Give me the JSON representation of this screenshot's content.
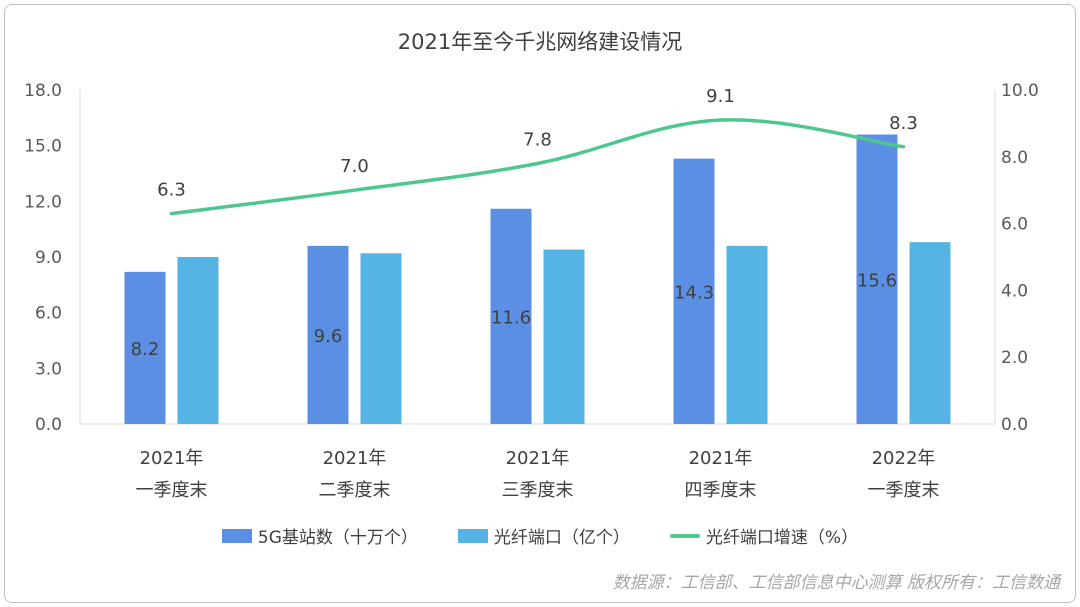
{
  "chart_data": {
    "type": "bar",
    "title": "2021年至今千兆网络建设情况",
    "categories": [
      [
        "2021年",
        "一季度末"
      ],
      [
        "2021年",
        "二季度末"
      ],
      [
        "2021年",
        "三季度末"
      ],
      [
        "2021年",
        "四季度末"
      ],
      [
        "2022年",
        "一季度末"
      ]
    ],
    "series": [
      {
        "name": "5G基站数（十万个）",
        "type": "bar",
        "axis": "left",
        "color": "#5b8fe3",
        "values": [
          8.2,
          9.6,
          11.6,
          14.3,
          15.6
        ],
        "labels": [
          "8.2",
          "9.6",
          "11.6",
          "14.3",
          "15.6"
        ]
      },
      {
        "name": "光纤端口（亿个）",
        "type": "bar",
        "axis": "left",
        "color": "#55b4e3",
        "values": [
          9.0,
          9.2,
          9.4,
          9.6,
          9.8
        ]
      },
      {
        "name": "光纤端口增速（%）",
        "type": "line",
        "axis": "right",
        "color": "#4ec78f",
        "values": [
          6.3,
          7.0,
          7.8,
          9.1,
          8.3
        ],
        "labels": [
          "6.3",
          "7.0",
          "7.8",
          "9.1",
          "8.3"
        ]
      }
    ],
    "y_left": {
      "min": 0,
      "max": 18,
      "ticks": [
        "0.0",
        "3.0",
        "6.0",
        "9.0",
        "12.0",
        "15.0",
        "18.0"
      ]
    },
    "y_right": {
      "min": 0,
      "max": 10,
      "ticks": [
        "0.0",
        "2.0",
        "4.0",
        "6.0",
        "8.0",
        "10.0"
      ]
    },
    "legend_position": "bottom",
    "grid": false
  },
  "source_note": "数据源：工信部、工信部信息中心测算  版权所有：工信数通"
}
